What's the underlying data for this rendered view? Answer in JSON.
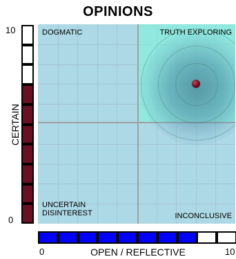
{
  "title": "OPINIONS",
  "y_axis": {
    "label": "CERTAIN",
    "max_label": "10",
    "min_label": "0",
    "level_of_10": 7
  },
  "x_axis": {
    "label": "OPEN / REFLECTIVE",
    "min_label": "0",
    "max_label": "10",
    "level_of_10": 8
  },
  "quadrants": {
    "top_left": "DOGMATIC",
    "top_right": "TRUTH EXPLORING",
    "bottom_left_line1": "UNCERTAIN",
    "bottom_left_line2": "DISINTEREST",
    "bottom_right": "INCONCLUSIVE"
  },
  "marker": {
    "x": 8.0,
    "y": 7.0
  },
  "colors": {
    "certain_fill": "#6b0f24",
    "open_fill": "#0000ff",
    "empty_fill": "#ffffff",
    "plot_bg": "#add8e6",
    "highlight": "#78f5d7"
  }
}
